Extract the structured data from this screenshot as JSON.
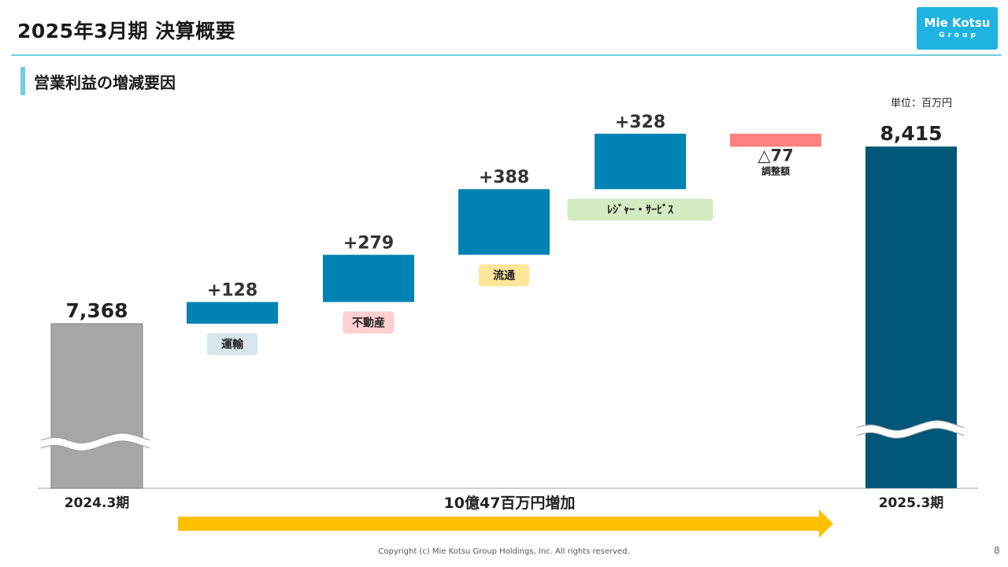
{
  "header": {
    "title": "2025年3月期 決算概要",
    "subtitle": "営業利益の増減要因",
    "logo_line1": "Mie Kotsu",
    "logo_line2": "Group"
  },
  "unit_label": "単位：百万円",
  "footer": {
    "copyright": "Copyright (c) Mie Kotsu Group Holdings, Inc. All rights reserved.",
    "page_number": "8"
  },
  "colors": {
    "accent": "#6fd0e0",
    "logo_bg": "#1fb3e1",
    "start_bar": "#a6a6a6",
    "increase_bar": "#0083b3",
    "decrease_bar": "#ff8080",
    "end_bar": "#005777",
    "arrow": "#ffc000"
  },
  "chart_data": {
    "type": "bar",
    "subtype": "waterfall",
    "unit": "百万円",
    "bars": [
      {
        "category": "2024.3期",
        "kind": "total",
        "value": 7368,
        "value_label": "7,368"
      },
      {
        "category": "運輸",
        "kind": "delta",
        "value": 128,
        "value_label": "+128",
        "tag_bg": "#d9e6ec"
      },
      {
        "category": "不動産",
        "kind": "delta",
        "value": 279,
        "value_label": "+279",
        "tag_bg": "#ffcfd2"
      },
      {
        "category": "流通",
        "kind": "delta",
        "value": 388,
        "value_label": "+388",
        "tag_bg": "#ffe699"
      },
      {
        "category": "ﾚｼﾞｬｰ・ｻｰﾋﾞｽ",
        "kind": "delta",
        "value": 328,
        "value_label": "+328",
        "tag_bg": "#d5ecc3"
      },
      {
        "category": "調整額",
        "kind": "delta",
        "value": -77,
        "value_label": "△77"
      },
      {
        "category": "2025.3期",
        "kind": "total",
        "value": 8415,
        "value_label": "8,415"
      }
    ],
    "axis_break": true,
    "annotation": "10億47百万円増加"
  }
}
